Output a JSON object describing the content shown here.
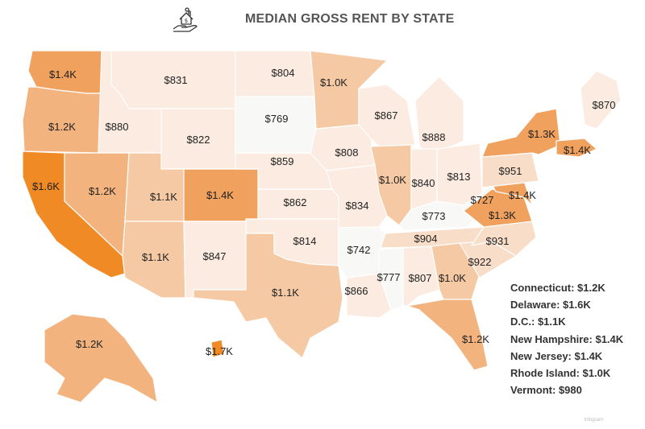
{
  "header": {
    "title": "MEDIAN GROSS RENT BY STATE",
    "logo_icon": "house-in-hand-icon"
  },
  "colors": {
    "lightest": "#f8f8f6",
    "light": "#fbebe0",
    "low_mid": "#f8ddc8",
    "mid": "#f5c9a3",
    "mid_high": "#f3b37f",
    "high": "#f0a15d",
    "highest": "#f08a25",
    "border": "#ffffff"
  },
  "states": [
    {
      "name": "Washington",
      "label": "$1.4K"
    },
    {
      "name": "Oregon",
      "label": "$1.2K"
    },
    {
      "name": "California",
      "label": "$1.6K"
    },
    {
      "name": "Idaho",
      "label": "$880"
    },
    {
      "name": "Nevada",
      "label": "$1.2K"
    },
    {
      "name": "Montana",
      "label": "$831"
    },
    {
      "name": "Wyoming",
      "label": "$822"
    },
    {
      "name": "Utah",
      "label": "$1.1K"
    },
    {
      "name": "Arizona",
      "label": "$1.1K"
    },
    {
      "name": "Colorado",
      "label": "$1.4K"
    },
    {
      "name": "New Mexico",
      "label": "$847"
    },
    {
      "name": "North Dakota",
      "label": "$804"
    },
    {
      "name": "South Dakota",
      "label": "$769"
    },
    {
      "name": "Nebraska",
      "label": "$859"
    },
    {
      "name": "Kansas",
      "label": "$862"
    },
    {
      "name": "Oklahoma",
      "label": "$814"
    },
    {
      "name": "Texas",
      "label": "$1.1K"
    },
    {
      "name": "Minnesota",
      "label": "$1.0K"
    },
    {
      "name": "Iowa",
      "label": "$808"
    },
    {
      "name": "Missouri",
      "label": "$834"
    },
    {
      "name": "Arkansas",
      "label": "$742"
    },
    {
      "name": "Louisiana",
      "label": "$866"
    },
    {
      "name": "Wisconsin",
      "label": "$867"
    },
    {
      "name": "Illinois",
      "label": "$1.0K"
    },
    {
      "name": "Michigan",
      "label": "$888"
    },
    {
      "name": "Indiana",
      "label": "$840"
    },
    {
      "name": "Ohio",
      "label": "$813"
    },
    {
      "name": "Kentucky",
      "label": "$773"
    },
    {
      "name": "Tennessee",
      "label": "$904"
    },
    {
      "name": "Mississippi",
      "label": "$777"
    },
    {
      "name": "Alabama",
      "label": "$807"
    },
    {
      "name": "Georgia",
      "label": "$1.0K"
    },
    {
      "name": "Florida",
      "label": "$1.2K"
    },
    {
      "name": "South Carolina",
      "label": "$922"
    },
    {
      "name": "North Carolina",
      "label": "$931"
    },
    {
      "name": "Virginia",
      "label": "$1.3K"
    },
    {
      "name": "West Virginia",
      "label": "$727"
    },
    {
      "name": "Maryland",
      "label": "$1.4K"
    },
    {
      "name": "Pennsylvania",
      "label": "$951"
    },
    {
      "name": "New York",
      "label": "$1.3K"
    },
    {
      "name": "Massachusetts",
      "label": "$1.4K"
    },
    {
      "name": "Maine",
      "label": "$870"
    },
    {
      "name": "Alaska",
      "label": "$1.2K"
    },
    {
      "name": "Hawaii",
      "label": "$1.7K"
    }
  ],
  "legend": [
    {
      "label": "Connecticut: $1.2K"
    },
    {
      "label": "Delaware: $1.6K"
    },
    {
      "label": "D.C.: $1.1K"
    },
    {
      "label": "New Hampshire: $1.4K"
    },
    {
      "label": "New Jersey: $1.4K"
    },
    {
      "label": "Rhode Island: $1.0K"
    },
    {
      "label": "Vermont: $980"
    }
  ],
  "credit": "Infogram"
}
